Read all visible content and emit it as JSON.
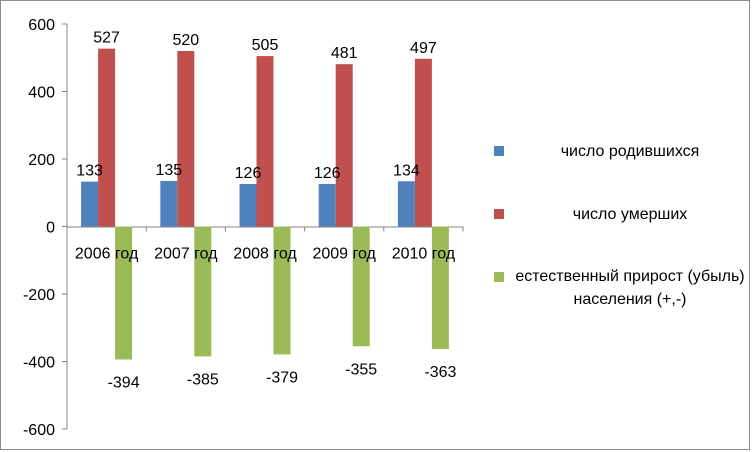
{
  "chart_data": {
    "type": "bar",
    "categories": [
      "2006 год",
      "2007 год",
      "2008 год",
      "2009 год",
      "2010 год"
    ],
    "series": [
      {
        "name": "число родившихся",
        "values": [
          133,
          135,
          126,
          126,
          134
        ],
        "color": "#4f81bd"
      },
      {
        "name": "число умерших",
        "values": [
          527,
          520,
          505,
          481,
          497
        ],
        "color": "#c0504d"
      },
      {
        "name": "естественный прирост (убыль) населения (+,-)",
        "values": [
          -394,
          -385,
          -379,
          -355,
          -363
        ],
        "color": "#9bbb59"
      }
    ],
    "y_ticks": [
      "600",
      "400",
      "200",
      "0",
      "-200",
      "-400",
      "-600"
    ],
    "ylim": [
      -600,
      600
    ],
    "grid": false,
    "legend_position": "right"
  }
}
